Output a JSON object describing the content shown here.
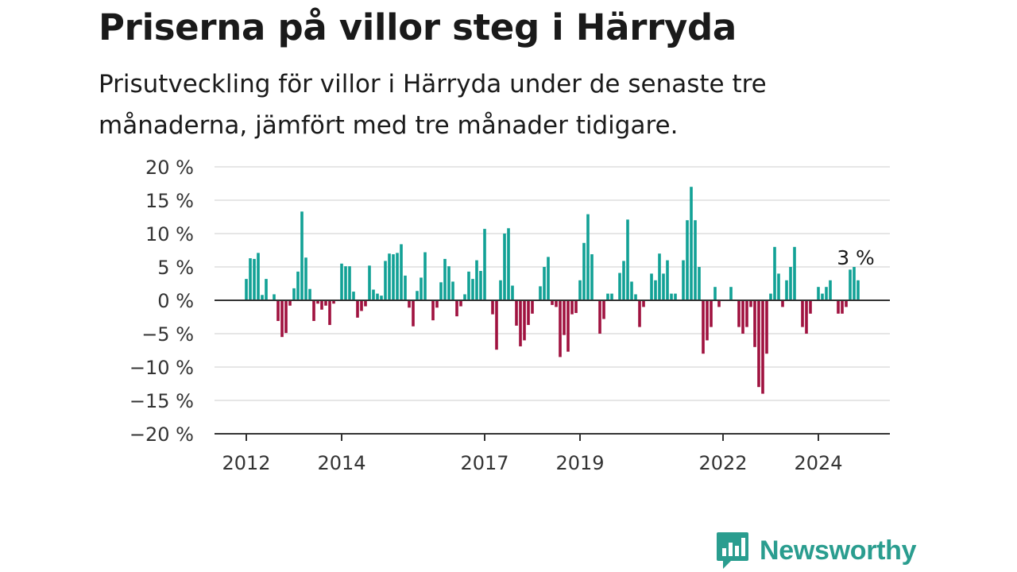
{
  "title": "Priserna på villor steg i Härryda",
  "subtitle": "Prisutveckling för villor i Härryda under de senaste tre månaderna, jämfört med tre månader tidigare.",
  "brand": {
    "name": "Newsworthy",
    "icon": "newsworthy-chart-logo-icon",
    "color": "#2a9d8f"
  },
  "colors": {
    "positive": "#12a196",
    "negative": "#a0123f",
    "grid": "#dddddd",
    "axis": "#333333"
  },
  "chart_data": {
    "type": "bar",
    "x_start": "2012-01",
    "x_step": "month",
    "ylim": [
      -20,
      20
    ],
    "yticks": [
      20,
      15,
      10,
      5,
      0,
      -5,
      -10,
      -15,
      -20
    ],
    "ytick_labels": [
      "20 %",
      "15 %",
      "10 %",
      "5 %",
      "0 %",
      "−5 %",
      "−10 %",
      "−15 %",
      "−20 %"
    ],
    "xtick_labels": [
      {
        "label": "2012",
        "index": 0
      },
      {
        "label": "2014",
        "index": 24
      },
      {
        "label": "2017",
        "index": 60
      },
      {
        "label": "2019",
        "index": 84
      },
      {
        "label": "2022",
        "index": 120
      },
      {
        "label": "2024",
        "index": 144
      }
    ],
    "grid": true,
    "annotation": {
      "text": "3 %",
      "index": 154
    },
    "values": [
      3.2,
      6.3,
      6.2,
      7.1,
      0.8,
      3.2,
      0,
      0.9,
      -3.1,
      -5.5,
      -4.9,
      -0.8,
      1.8,
      4.3,
      13.3,
      6.4,
      1.7,
      -3.1,
      -0.5,
      -1.4,
      -0.8,
      -3.7,
      -0.5,
      0,
      5.5,
      5.1,
      5.1,
      1.3,
      -2.6,
      -1.6,
      -0.9,
      5.2,
      1.6,
      1.0,
      0.7,
      5.9,
      7.0,
      6.9,
      7.1,
      8.4,
      3.7,
      -1.1,
      -3.9,
      1.4,
      3.4,
      7.2,
      0,
      -3.0,
      -1.1,
      2.7,
      6.2,
      5.1,
      2.8,
      -2.4,
      -0.9,
      0.9,
      4.3,
      3.2,
      6.0,
      4.4,
      10.7,
      0,
      -2.1,
      -7.4,
      3.0,
      10.0,
      10.8,
      2.2,
      -3.8,
      -6.9,
      -6.0,
      -3.7,
      -2.0,
      0,
      2.1,
      5.0,
      6.5,
      -0.7,
      -1.0,
      -8.5,
      -5.2,
      -7.7,
      -2.1,
      -1.9,
      3.0,
      8.6,
      12.9,
      6.9,
      0,
      -5.0,
      -2.8,
      1.0,
      1.0,
      0,
      4.1,
      5.9,
      12.1,
      2.8,
      0.9,
      -4.0,
      -1.0,
      0,
      4.0,
      3.0,
      7.0,
      4.0,
      6.0,
      1.0,
      1.0,
      0,
      6.0,
      12.0,
      17.0,
      12.0,
      5.0,
      -8.0,
      -6.0,
      -4.0,
      2.0,
      -1.0,
      0,
      0,
      2.0,
      0,
      -4.0,
      -5.0,
      -4.0,
      -1.0,
      -7.0,
      -13.0,
      -14.0,
      -8.0,
      1.0,
      8.0,
      4.0,
      -1.0,
      3.0,
      5.0,
      8.0,
      0,
      -4.0,
      -5.0,
      -2.0,
      0,
      2.0,
      1.0,
      2.0,
      3.0,
      0,
      -2.0,
      -2.0,
      -1.0,
      4.6,
      5.0,
      3.0
    ]
  }
}
